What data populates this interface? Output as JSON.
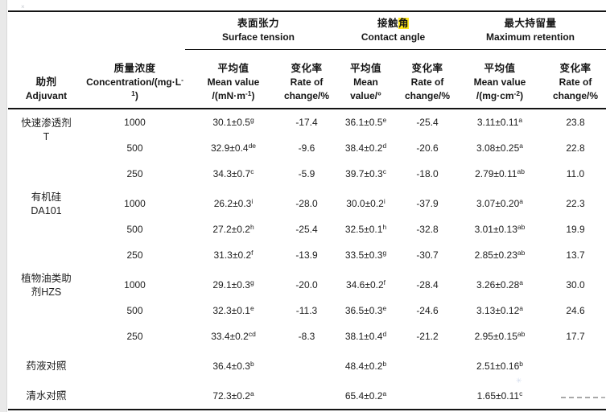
{
  "page": {
    "highlight_color": "#ffe81a",
    "left_strip_color": "#e9e9e9"
  },
  "table": {
    "groups": [
      {
        "zh_pre": "表面张力",
        "zh_hl": "",
        "en": "Surface tension"
      },
      {
        "zh_pre": "接触",
        "zh_hl": "角",
        "en": "Contact angle"
      },
      {
        "zh_pre": "最大持留量",
        "zh_hl": "",
        "en": "Maximum retention"
      }
    ],
    "header": {
      "adjuvant": {
        "zh": "助剂",
        "en": "Adjuvant"
      },
      "concentration": {
        "zh": "质量浓度",
        "en_pre": "Concentration/(mg·L",
        "en_sup": "-1",
        "en_post": ")"
      },
      "st_mean": {
        "zh": "平均值",
        "en": "Mean value",
        "unit_pre": "/(mN·m",
        "unit_sup": "-1",
        "unit_post": ")"
      },
      "st_rate": {
        "zh": "变化率",
        "en1": "Rate of",
        "en2": "change/%"
      },
      "ca_mean": {
        "zh": "平均值",
        "en": "Mean",
        "unit_pre": "value/°",
        "unit_sup": "",
        "unit_post": ""
      },
      "ca_rate": {
        "zh": "变化率",
        "en1": "Rate of",
        "en2": "change/%"
      },
      "mr_mean": {
        "zh": "平均值",
        "en": "Mean value",
        "unit_pre": "/(mg·cm",
        "unit_sup": "-2",
        "unit_post": ")"
      },
      "mr_rate": {
        "zh": "变化率",
        "en1": "Rate of",
        "en2": "change/%"
      }
    },
    "rows": [
      {
        "adj": [
          "快速渗透剂",
          "T"
        ],
        "span": 3,
        "conc": "1000",
        "st": "30.1±0.5",
        "st_s": "g",
        "str": "-17.4",
        "ca": "36.1±0.5",
        "ca_s": "e",
        "car": "-25.4",
        "mr": "3.11±0.11",
        "mr_s": "a",
        "mrr": "23.8"
      },
      {
        "conc": "500",
        "st": "32.9±0.4",
        "st_s": "de",
        "str": "-9.6",
        "ca": "38.4±0.2",
        "ca_s": "d",
        "car": "-20.6",
        "mr": "3.08±0.25",
        "mr_s": "a",
        "mrr": "22.8"
      },
      {
        "conc": "250",
        "st": "34.3±0.7",
        "st_s": "c",
        "str": "-5.9",
        "ca": "39.7±0.3",
        "ca_s": "c",
        "car": "-18.0",
        "mr": "2.79±0.11",
        "mr_s": "ab",
        "mrr": "11.0"
      },
      {
        "adj": [
          "有机硅",
          "DA101"
        ],
        "span": 3,
        "group_start": true,
        "conc": "1000",
        "st": "26.2±0.3",
        "st_s": "i",
        "str": "-28.0",
        "ca": "30.0±0.2",
        "ca_s": "i",
        "car": "-37.9",
        "mr": "3.07±0.20",
        "mr_s": "a",
        "mrr": "22.3"
      },
      {
        "conc": "500",
        "st": "27.2±0.2",
        "st_s": "h",
        "str": "-25.4",
        "ca": "32.5±0.1",
        "ca_s": "h",
        "car": "-32.8",
        "mr": "3.01±0.13",
        "mr_s": "ab",
        "mrr": "19.9"
      },
      {
        "conc": "250",
        "st": "31.3±0.2",
        "st_s": "f",
        "str": "-13.9",
        "ca": "33.5±0.3",
        "ca_s": "g",
        "car": "-30.7",
        "mr": "2.85±0.23",
        "mr_s": "ab",
        "mrr": "13.7"
      },
      {
        "adj": [
          "植物油类助",
          "剂HZS"
        ],
        "span": 3,
        "group_start": true,
        "conc": "1000",
        "st": "29.1±0.3",
        "st_s": "g",
        "str": "-20.0",
        "ca": "34.6±0.2",
        "ca_s": "f",
        "car": "-28.4",
        "mr": "3.26±0.28",
        "mr_s": "a",
        "mrr": "30.0"
      },
      {
        "conc": "500",
        "st": "32.3±0.1",
        "st_s": "e",
        "str": "-11.3",
        "ca": "36.5±0.3",
        "ca_s": "e",
        "car": "-24.6",
        "mr": "3.13±0.12",
        "mr_s": "a",
        "mrr": "24.6"
      },
      {
        "conc": "250",
        "st": "33.4±0.2",
        "st_s": "cd",
        "str": "-8.3",
        "ca": "38.1±0.4",
        "ca_s": "d",
        "car": "-21.2",
        "mr": "2.95±0.15",
        "mr_s": "ab",
        "mrr": "17.7"
      },
      {
        "adj": [
          "药液对照"
        ],
        "span": 1,
        "group_start": true,
        "conc": "",
        "st": "36.4±0.3",
        "st_s": "b",
        "str": "",
        "ca": "48.4±0.2",
        "ca_s": "b",
        "car": "",
        "mr": "2.51±0.16",
        "mr_s": "b",
        "mrr": ""
      },
      {
        "adj": [
          "清水对照"
        ],
        "span": 1,
        "group_start": true,
        "conc": "",
        "st": "72.3±0.2",
        "st_s": "a",
        "str": "",
        "ca": "65.4±0.2",
        "ca_s": "a",
        "car": "",
        "mr": "1.65±0.11",
        "mr_s": "c",
        "mrr": ""
      }
    ]
  }
}
